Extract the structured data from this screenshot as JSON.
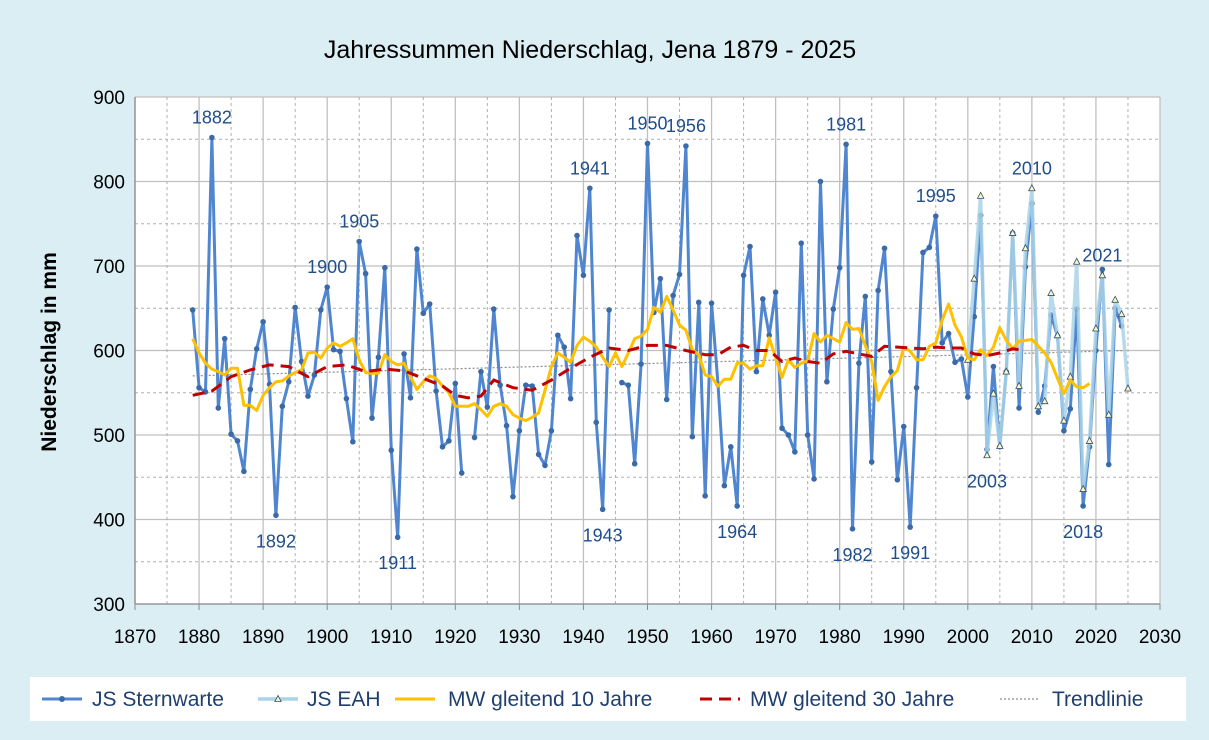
{
  "chart_data": {
    "type": "line",
    "title": "Jahressummen Niederschlag, Jena 1879 - 2025",
    "xlabel": "",
    "ylabel": "Niederschlag in mm",
    "xlim": [
      1870,
      2030
    ],
    "ylim": [
      300,
      900
    ],
    "xticks": [
      1870,
      1880,
      1890,
      1900,
      1910,
      1920,
      1930,
      1940,
      1950,
      1960,
      1970,
      1980,
      1990,
      2000,
      2010,
      2020,
      2030
    ],
    "yticks": [
      300,
      400,
      500,
      600,
      700,
      800,
      900
    ],
    "grid": true,
    "legend_position": "bottom",
    "colors": {
      "sternwarte": "#4f86cf",
      "eah": "#a9d4e8",
      "ma10": "#ffc000",
      "ma30": "#c00000",
      "trend": "#8c8c8c",
      "annotation": "#1f4e8c",
      "background": "#dbeef4"
    },
    "series": [
      {
        "name": "JS Sternwarte",
        "marker": "circle",
        "x_start": 1879,
        "values": [
          648,
          556,
          551,
          852,
          532,
          614,
          501,
          493,
          457,
          554,
          602,
          634,
          560,
          405,
          534,
          563,
          651,
          587,
          546,
          571,
          648,
          675,
          601,
          599,
          543,
          492,
          729,
          691,
          520,
          592,
          698,
          482,
          379,
          596,
          544,
          720,
          644,
          655,
          552,
          486,
          493,
          561,
          455,
          null,
          497,
          575,
          533,
          649,
          559,
          511,
          427,
          505,
          559,
          558,
          477,
          464,
          505,
          618,
          604,
          543,
          736,
          689,
          792,
          515,
          412,
          648,
          null,
          562,
          559,
          466,
          584,
          845,
          645,
          685,
          542,
          665,
          690,
          842,
          498,
          657,
          428,
          656,
          560,
          440,
          486,
          416,
          689,
          723,
          575,
          661,
          618,
          669,
          508,
          500,
          480,
          727,
          500,
          448,
          800,
          563,
          649,
          698,
          844,
          389,
          585,
          664,
          468,
          671,
          721,
          575,
          447,
          510,
          391,
          556,
          716,
          722,
          759,
          609,
          620,
          586,
          590,
          545,
          640,
          760,
          483,
          581,
          486,
          575,
          739,
          532,
          699,
          774,
          527,
          558,
          642,
          617,
          505,
          531,
          649,
          416,
          486,
          600,
          696,
          465,
          650,
          629
        ]
      },
      {
        "name": "JS EAH",
        "marker": "triangle",
        "x_start": 2000,
        "values": [
          589,
          685,
          783,
          476,
          549,
          487,
          575,
          739,
          558,
          721,
          792,
          534,
          540,
          668,
          618,
          517,
          569,
          705,
          436,
          493,
          626,
          689,
          524,
          660,
          643,
          555
        ]
      },
      {
        "name": "MW gleitend 10 Jahre",
        "x_start": 1879,
        "values": [
          614,
          597,
          585,
          578,
          575,
          571,
          579,
          579,
          535,
          535,
          529,
          547,
          556,
          563,
          564,
          570,
          574,
          577,
          597,
          598,
          591,
          603,
          609,
          605,
          609,
          614,
          589,
          574,
          573,
          573,
          595,
          587,
          583,
          585,
          569,
          554,
          563,
          570,
          567,
          558,
          550,
          534,
          534,
          534,
          537,
          530,
          522,
          534,
          537,
          534,
          524,
          520,
          517,
          521,
          526,
          553,
          581,
          597,
          592,
          586,
          606,
          616,
          611,
          604,
          592,
          581,
          597,
          581,
          597,
          614,
          617,
          625,
          651,
          645,
          664,
          648,
          630,
          624,
          601,
          595,
          571,
          569,
          558,
          566,
          566,
          585,
          585,
          578,
          582,
          582,
          615,
          592,
          568,
          589,
          580,
          585,
          588,
          620,
          610,
          618,
          614,
          610,
          633,
          625,
          626,
          606,
          587,
          541,
          557,
          569,
          576,
          604,
          599,
          589,
          589,
          605,
          609,
          636,
          655,
          630,
          616,
          591,
          589,
          601,
          594,
          604,
          627,
          612,
          602,
          611,
          612,
          613,
          605,
          597,
          586,
          567,
          549,
          565,
          557,
          556,
          561
        ]
      },
      {
        "name": "MW gleitend 30 Jahre",
        "x": [
          1879,
          1882,
          1885,
          1888,
          1891,
          1894,
          1897,
          1900,
          1903,
          1906,
          1909,
          1912,
          1915,
          1918,
          1920,
          1922,
          1924,
          1926,
          1929,
          1932,
          1935,
          1938,
          1941,
          1944,
          1947,
          1950,
          1953,
          1956,
          1959,
          1961,
          1963,
          1965,
          1967,
          1969,
          1971,
          1973,
          1975,
          1977,
          1979,
          1981,
          1983,
          1985,
          1987,
          1989,
          1991,
          1993,
          1995,
          1997,
          1999,
          2001,
          2003,
          2005,
          2007,
          2009
        ],
        "values": [
          547,
          552,
          569,
          577,
          583,
          581,
          569,
          581,
          583,
          575,
          578,
          576,
          567,
          558,
          547,
          544,
          546,
          565,
          556,
          553,
          565,
          579,
          592,
          603,
          600,
          606,
          606,
          600,
          595,
          595,
          604,
          606,
          600,
          600,
          587,
          591,
          587,
          585,
          596,
          599,
          596,
          593,
          605,
          604,
          603,
          602,
          604,
          603,
          603,
          596,
          594,
          597,
          602,
          600
        ]
      },
      {
        "name": "Trendlinie",
        "x": [
          1879,
          2025
        ],
        "values": [
          570,
          600
        ]
      }
    ],
    "annotations": [
      {
        "year": 1882,
        "label": "1882",
        "pos": "above",
        "series": 0
      },
      {
        "year": 1892,
        "label": "1892",
        "pos": "below",
        "series": 0
      },
      {
        "year": 1900,
        "label": "1900",
        "pos": "above",
        "series": 0
      },
      {
        "year": 1905,
        "label": "1905",
        "pos": "above",
        "series": 0
      },
      {
        "year": 1911,
        "label": "1911",
        "pos": "below",
        "series": 0
      },
      {
        "year": 1941,
        "label": "1941",
        "pos": "above",
        "series": 0
      },
      {
        "year": 1943,
        "label": "1943",
        "pos": "below",
        "series": 0
      },
      {
        "year": 1950,
        "label": "1950",
        "pos": "above",
        "series": 0
      },
      {
        "year": 1956,
        "label": "1956",
        "pos": "above",
        "series": 0
      },
      {
        "year": 1964,
        "label": "1964",
        "pos": "below",
        "series": 0
      },
      {
        "year": 1981,
        "label": "1981",
        "pos": "above",
        "series": 0
      },
      {
        "year": 1982,
        "label": "1982",
        "pos": "below",
        "series": 0
      },
      {
        "year": 1991,
        "label": "1991",
        "pos": "below",
        "series": 0
      },
      {
        "year": 1995,
        "label": "1995",
        "pos": "above",
        "series": 0
      },
      {
        "year": 2003,
        "label": "2003",
        "pos": "below",
        "series": 1
      },
      {
        "year": 2010,
        "label": "2010",
        "pos": "above",
        "series": 1
      },
      {
        "year": 2018,
        "label": "2018",
        "pos": "below",
        "series": 0
      },
      {
        "year": 2021,
        "label": "2021",
        "pos": "above",
        "series": 1
      }
    ]
  }
}
